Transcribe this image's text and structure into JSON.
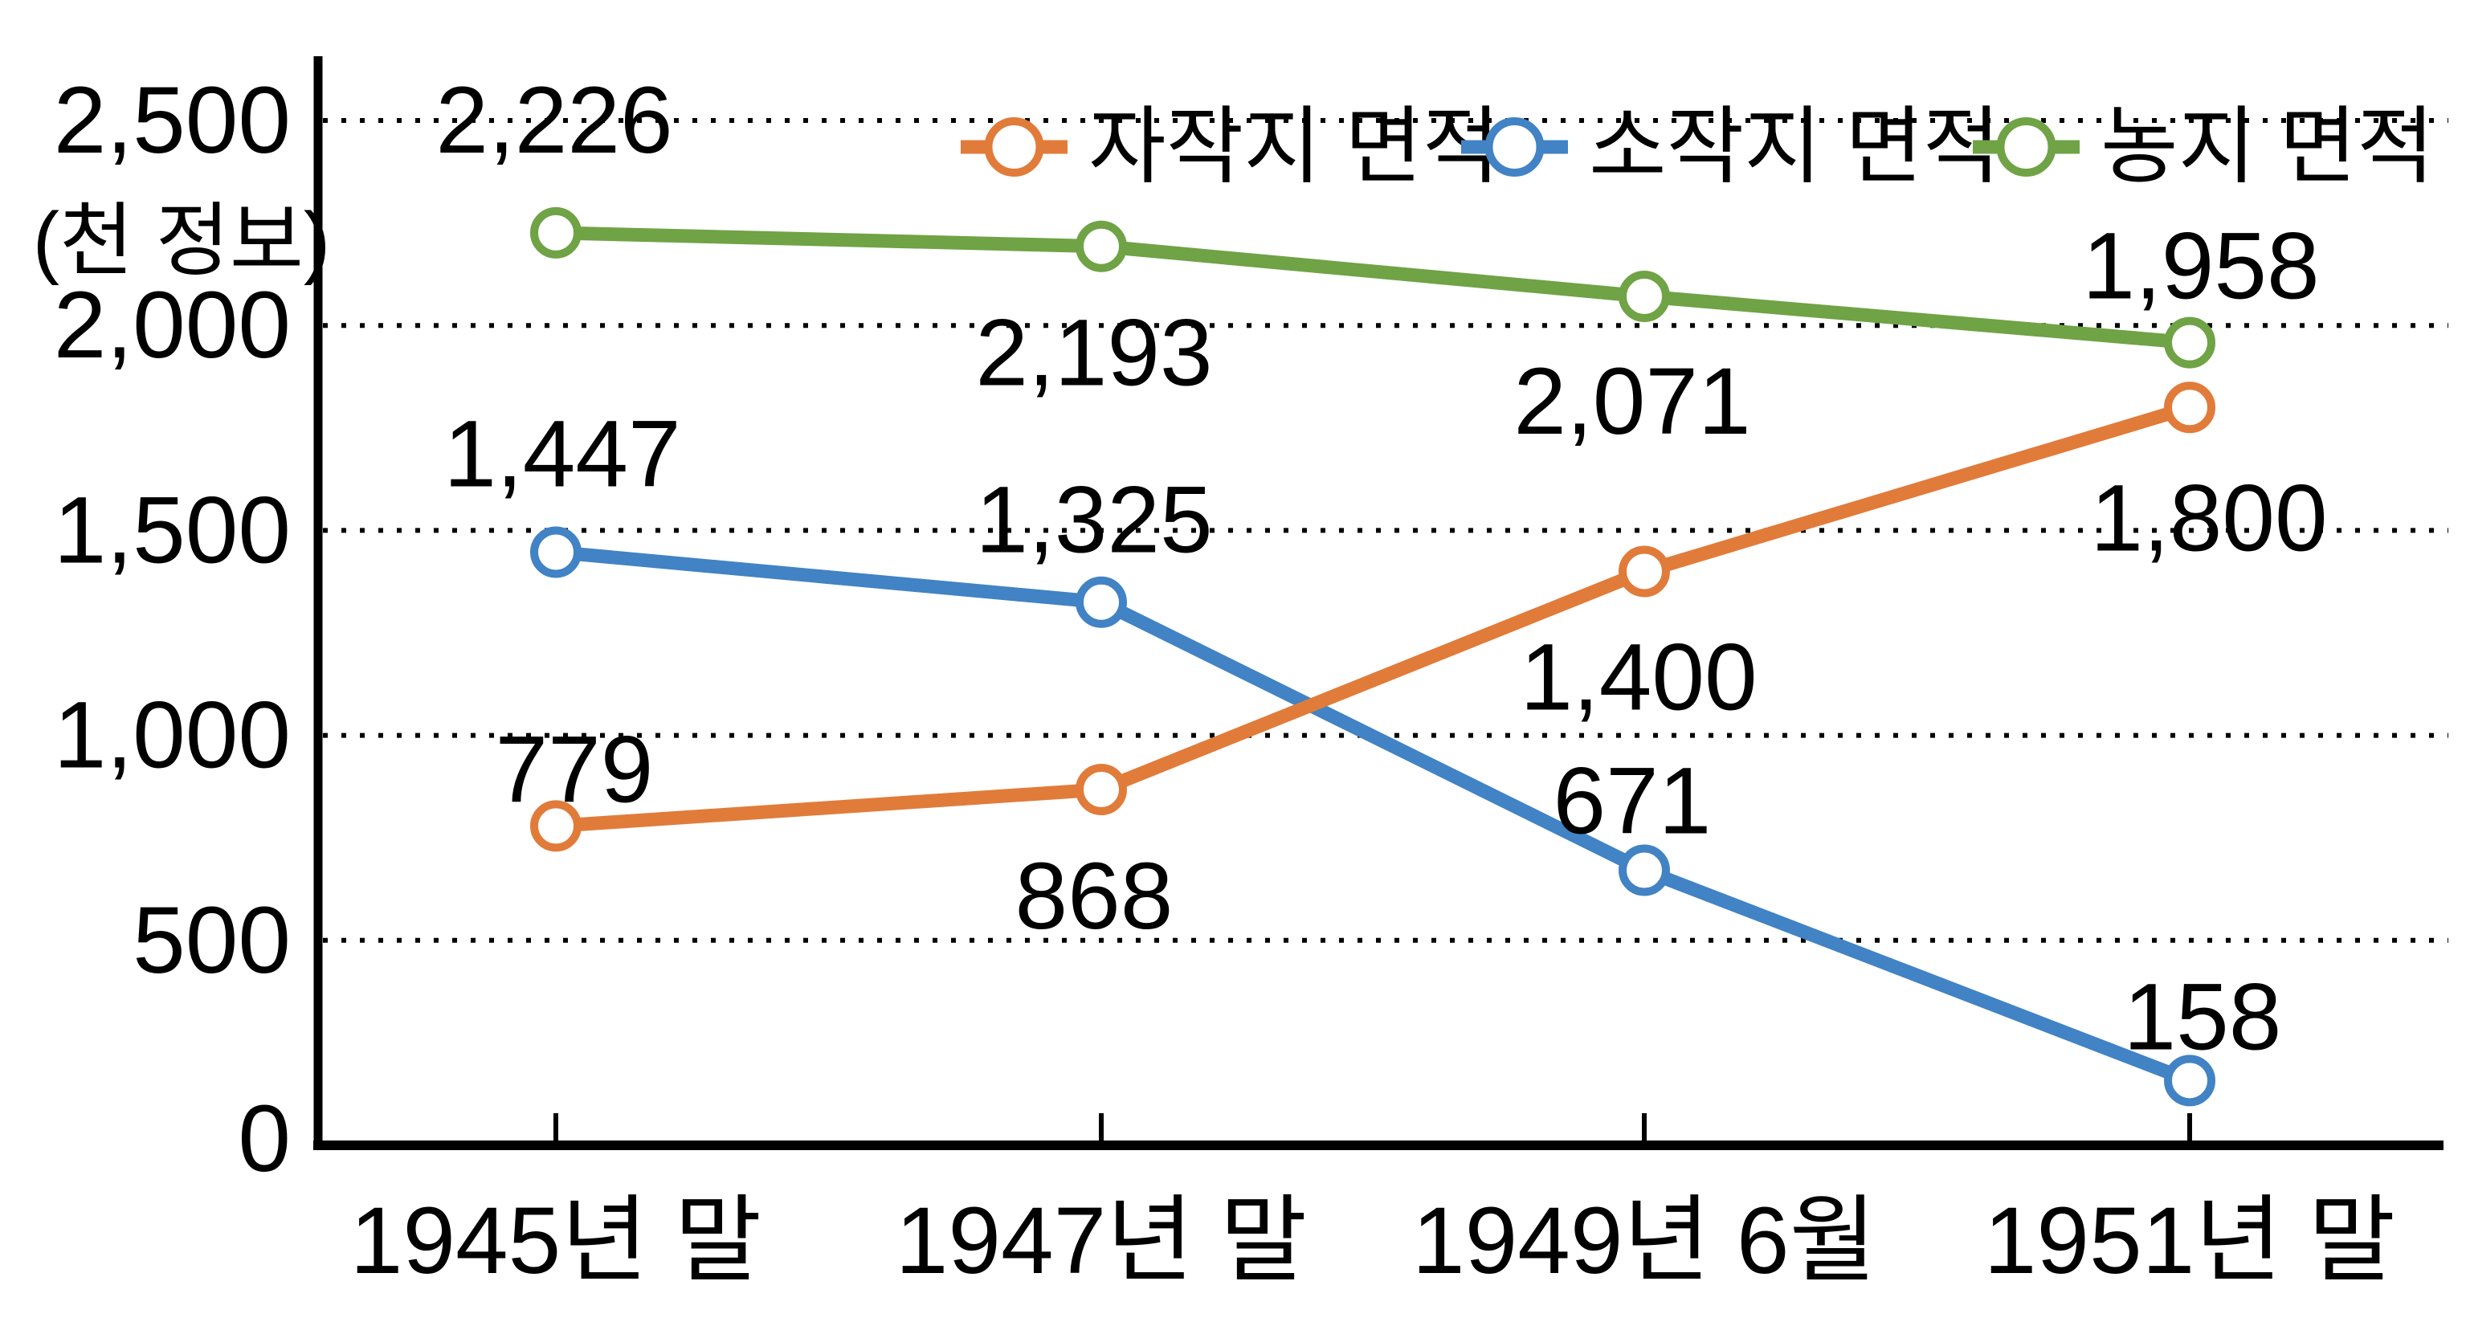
{
  "chart_data": {
    "type": "line",
    "unit_label": "(천 정보)",
    "categories": [
      "1945년 말",
      "1947년 말",
      "1949년 6월",
      "1951년 말"
    ],
    "yticks": [
      "0",
      "500",
      "1,000",
      "1,500",
      "2,000",
      "2,500"
    ],
    "ytick_values": [
      0,
      500,
      1000,
      1500,
      2000,
      2500
    ],
    "ylim": [
      0,
      2500
    ],
    "grid": "horizontal-dotted",
    "legend_position": "top",
    "axis_color": "#000000",
    "background": "#FFFFFF",
    "series": [
      {
        "name": "자작지 면적",
        "color": "#E17B3A",
        "values": [
          779,
          868,
          1400,
          1800
        ],
        "value_labels": [
          "779",
          "868",
          "1,400",
          "1,800"
        ],
        "label_offsets": [
          [
            23,
            -70
          ],
          [
            -9,
            133
          ],
          [
            -7,
            132
          ],
          [
            24,
            138
          ]
        ]
      },
      {
        "name": "소작지 면적",
        "color": "#4183C4",
        "values": [
          1447,
          1325,
          671,
          158
        ],
        "value_labels": [
          "1,447",
          "1,325",
          "671",
          "158"
        ],
        "label_offsets": [
          [
            8,
            -122
          ],
          [
            -9,
            -102
          ],
          [
            -15,
            -86
          ],
          [
            16,
            -79
          ]
        ]
      },
      {
        "name": "농지 면적",
        "color": "#6FA345",
        "values": [
          2226,
          2193,
          2071,
          1958
        ],
        "value_labels": [
          "2,226",
          "2,193",
          "2,071",
          "1,958"
        ],
        "label_offsets": [
          [
            -2,
            -140
          ],
          [
            -9,
            133
          ],
          [
            -15,
            131
          ],
          [
            14,
            -95
          ]
        ]
      }
    ]
  }
}
